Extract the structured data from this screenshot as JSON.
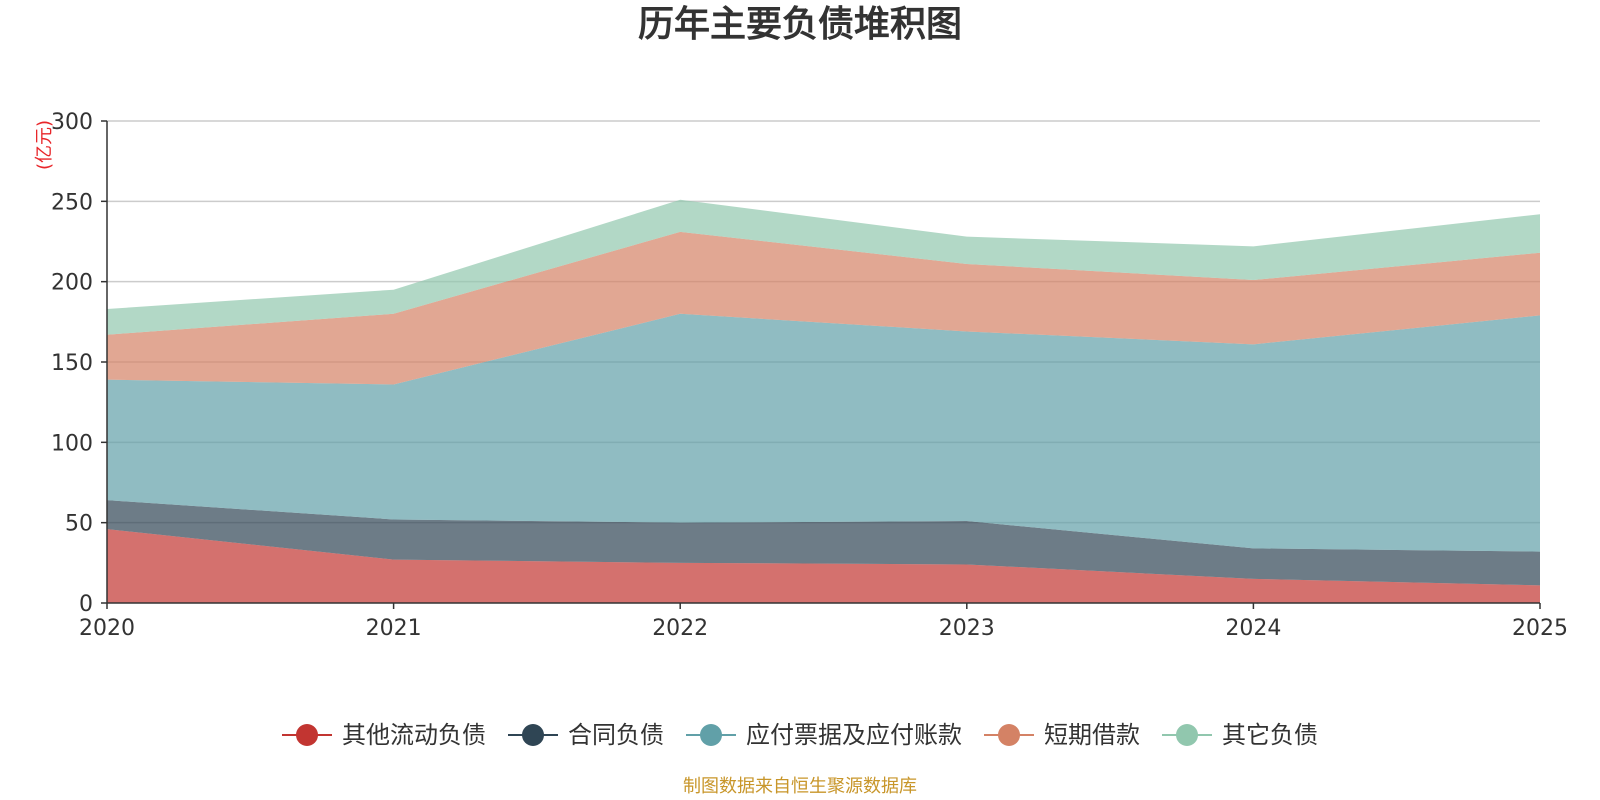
{
  "chart_data": {
    "type": "area",
    "stacked": true,
    "title": "历年主要负债堆积图",
    "unit_label": "(亿元)",
    "x": [
      "2020",
      "2021",
      "2022",
      "2023",
      "2024",
      "2025"
    ],
    "ylim": [
      0,
      300
    ],
    "yticks": [
      "0",
      "50",
      "100",
      "150",
      "200",
      "250",
      "300"
    ],
    "grid": true,
    "legend_position": "bottom",
    "series": [
      {
        "name": "其他流动负债",
        "color": "#c23531",
        "values": [
          46,
          27,
          25,
          24,
          15,
          11
        ]
      },
      {
        "name": "合同负债",
        "color": "#2f4554",
        "values": [
          18,
          25,
          25,
          27,
          19,
          21
        ]
      },
      {
        "name": "应付票据及应付账款",
        "color": "#61a0a8",
        "values": [
          75,
          84,
          130,
          118,
          127,
          147
        ]
      },
      {
        "name": "短期借款",
        "color": "#d48265",
        "values": [
          28,
          44,
          51,
          42,
          40,
          39
        ]
      },
      {
        "name": "其它负债",
        "color": "#91c7ae",
        "values": [
          16,
          15,
          20,
          17,
          21,
          24
        ]
      }
    ],
    "source": "制图数据来自恒生聚源数据库"
  }
}
